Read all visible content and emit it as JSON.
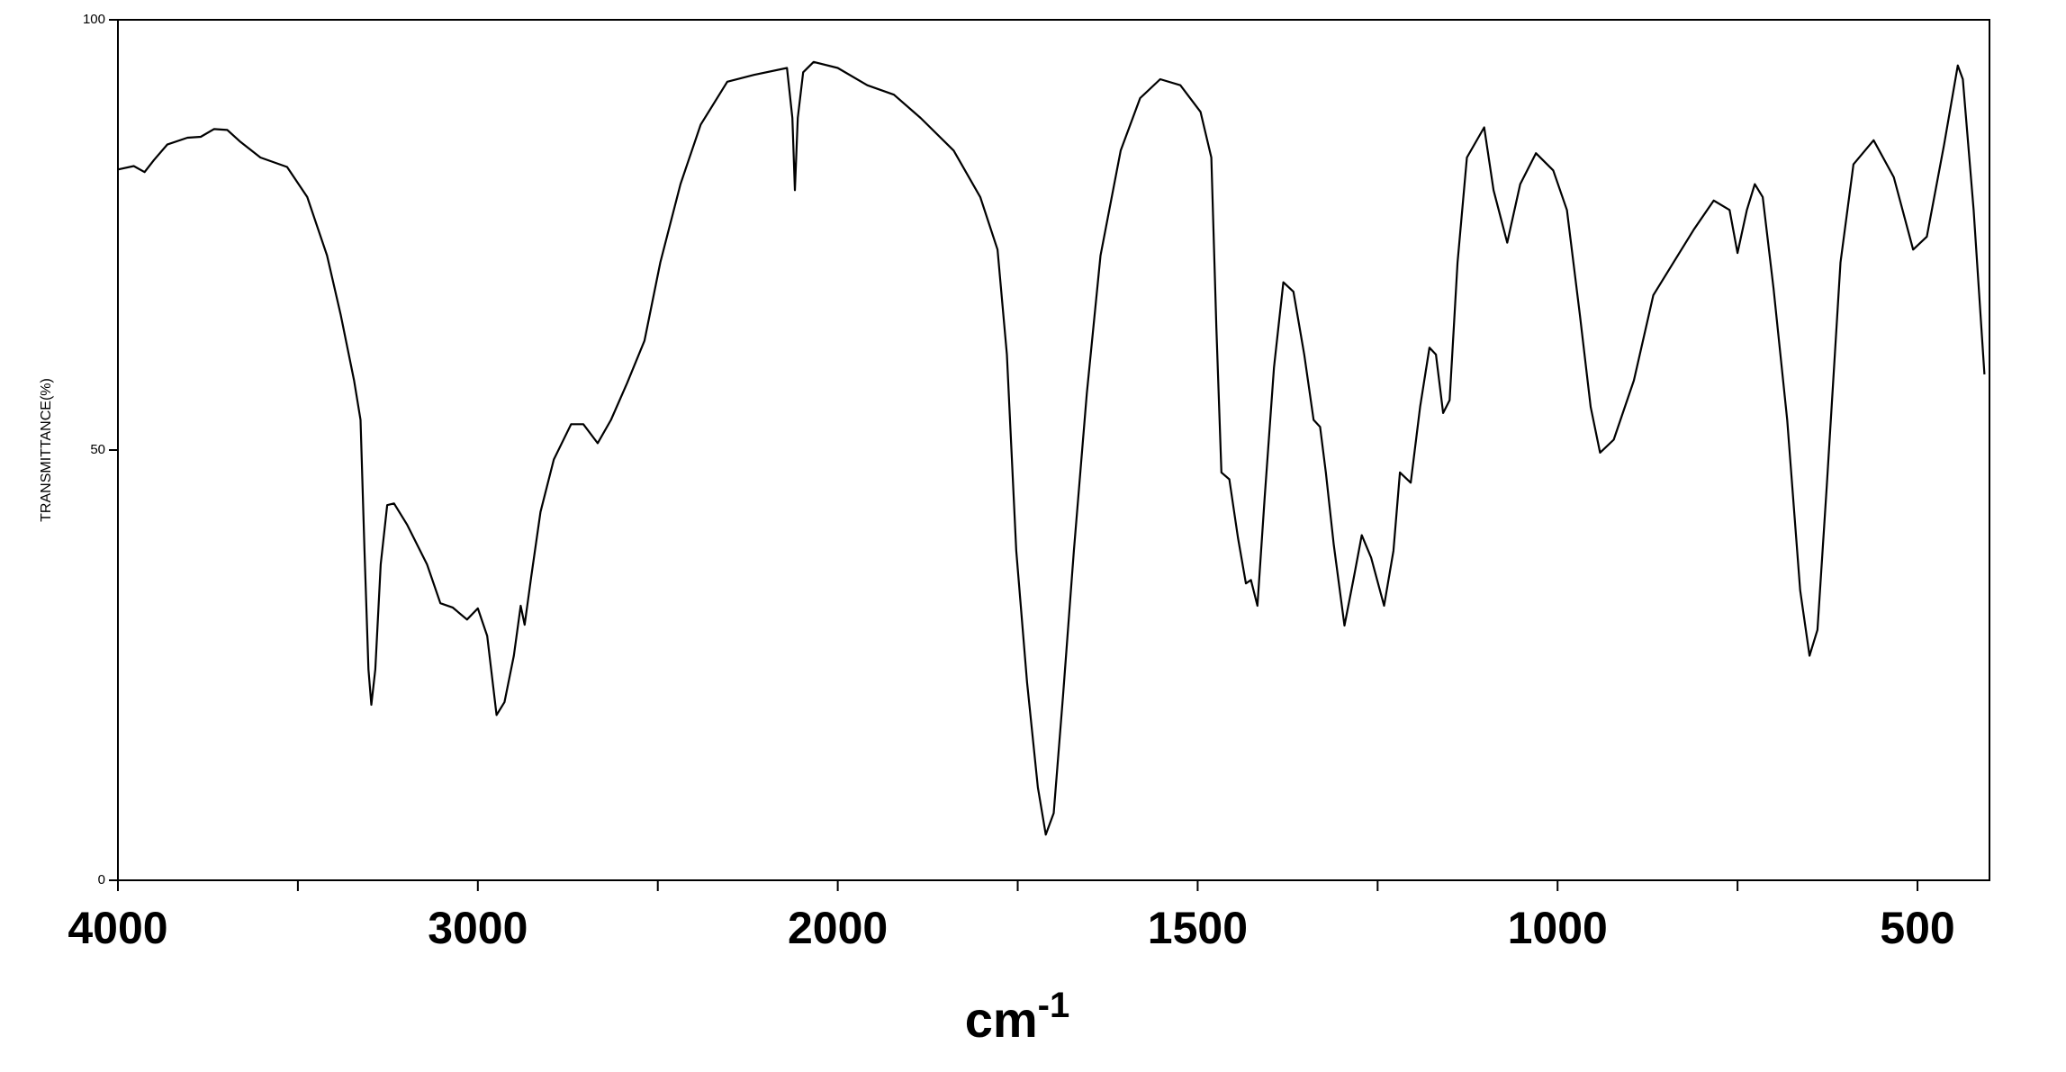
{
  "chart_data": {
    "type": "line",
    "ylabel": "TRANSMITTANCE(%)",
    "xlabel": "cm",
    "xlabel_superscript": "-1",
    "xlim": [
      4000,
      400
    ],
    "x_scale_change": {
      "at": 2000,
      "factor": 2
    },
    "xticks": [
      4000,
      3000,
      2000,
      1500,
      1000,
      500
    ],
    "xminor_ticks": [
      3500,
      2500,
      1750,
      1250,
      750
    ],
    "ylim": [
      0,
      100
    ],
    "yticks": [
      0,
      50,
      100
    ],
    "color": "#000000",
    "x": [
      4000,
      3956,
      3926,
      3900,
      3863,
      3807,
      3770,
      3733,
      3696,
      3659,
      3604,
      3530,
      3474,
      3419,
      3381,
      3344,
      3326,
      3315,
      3304,
      3296,
      3285,
      3270,
      3252,
      3233,
      3196,
      3141,
      3104,
      3070,
      3030,
      3000,
      2974,
      2948,
      2926,
      2900,
      2881,
      2870,
      2852,
      2826,
      2789,
      2741,
      2707,
      2667,
      2630,
      2585,
      2537,
      2493,
      2437,
      2381,
      2307,
      2233,
      2141,
      2126,
      2119,
      2111,
      2096,
      2067,
      2000,
      1959,
      1922,
      1885,
      1839,
      1802,
      1778,
      1765,
      1752,
      1737,
      1722,
      1711,
      1700,
      1687,
      1672,
      1654,
      1635,
      1607,
      1580,
      1552,
      1524,
      1496,
      1481,
      1474,
      1467,
      1456,
      1444,
      1433,
      1426,
      1417,
      1407,
      1394,
      1381,
      1367,
      1352,
      1339,
      1330,
      1322,
      1311,
      1296,
      1283,
      1272,
      1259,
      1241,
      1228,
      1219,
      1204,
      1191,
      1178,
      1169,
      1159,
      1150,
      1139,
      1126,
      1102,
      1089,
      1070,
      1052,
      1030,
      1006,
      987,
      969,
      954,
      941,
      922,
      894,
      867,
      839,
      811,
      783,
      761,
      750,
      737,
      726,
      715,
      700,
      681,
      663,
      650,
      639,
      626,
      607,
      589,
      561,
      533,
      506,
      487,
      463,
      444,
      437,
      422,
      407
    ],
    "values": [
      82.6,
      83,
      82.3,
      83.7,
      85.5,
      86.3,
      86.4,
      87.3,
      87.2,
      85.8,
      84,
      82.9,
      79.4,
      72.6,
      65.7,
      58.1,
      53.5,
      38.3,
      24.5,
      20.4,
      24.5,
      36.7,
      43.6,
      43.8,
      41.3,
      36.7,
      32.2,
      31.7,
      30.3,
      31.6,
      28.4,
      19.2,
      20.7,
      26.1,
      31.9,
      29.7,
      35.2,
      42.8,
      48.9,
      53,
      53,
      50.8,
      53.5,
      57.8,
      62.7,
      71.8,
      80.9,
      87.8,
      92.8,
      93.6,
      94.4,
      88.6,
      80.2,
      88.6,
      93.9,
      95.1,
      94.4,
      92.4,
      91.3,
      88.6,
      84.8,
      79.4,
      73.3,
      61.1,
      38.3,
      23,
      10.8,
      5.3,
      7.8,
      21.5,
      38.3,
      56.6,
      72.6,
      84.8,
      90.9,
      93.1,
      92.4,
      89.3,
      84,
      64.2,
      47.4,
      46.6,
      39.8,
      34.5,
      34.9,
      31.9,
      44.4,
      59.6,
      69.5,
      68.4,
      61.1,
      53.5,
      52.7,
      47.4,
      39,
      29.6,
      35.2,
      40.1,
      37.5,
      31.9,
      38.3,
      47.4,
      46.2,
      55,
      61.9,
      61.1,
      54.3,
      55.8,
      71.8,
      84,
      87.5,
      80.2,
      74.1,
      80.9,
      84.5,
      82.5,
      77.9,
      65.7,
      55,
      49.7,
      51.2,
      58.1,
      68,
      71.8,
      75.6,
      79,
      77.9,
      72.9,
      77.9,
      80.9,
      79.4,
      68.8,
      53.5,
      33.7,
      26.1,
      29.1,
      45.9,
      71.8,
      83.2,
      86,
      81.7,
      73.3,
      74.8,
      85.5,
      94.7,
      93.1,
      77.9,
      58.8
    ]
  }
}
